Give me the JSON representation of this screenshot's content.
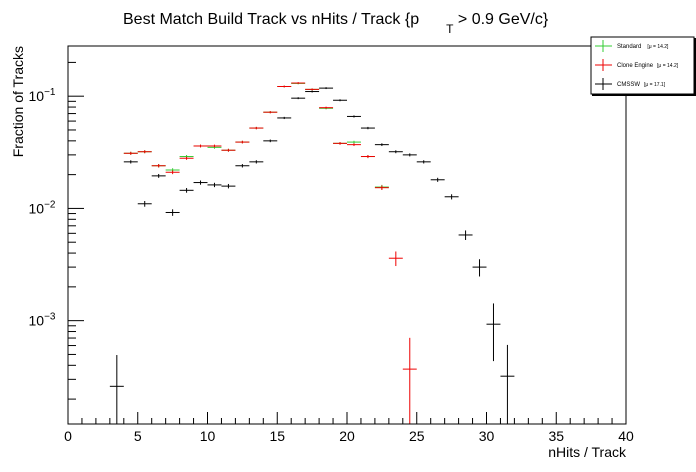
{
  "chart_data": {
    "type": "scatter",
    "title": "Best Match Build Track vs nHits / Track {p",
    "title_sub": "T",
    "title_tail": " > 0.9 GeV/c}",
    "xlabel": "nHits / Track",
    "ylabel": "Fraction of Tracks",
    "xlim": [
      0,
      40
    ],
    "ylim": [
      0.00012,
      0.28
    ],
    "yscale": "log",
    "x_ticks": [
      0,
      5,
      10,
      15,
      20,
      25,
      30,
      35,
      40
    ],
    "y_ticks": [
      {
        "value": 0.001,
        "base": "10",
        "exp": "−3"
      },
      {
        "value": 0.01,
        "base": "10",
        "exp": "−2"
      },
      {
        "value": 0.1,
        "base": "10",
        "exp": "−1"
      }
    ],
    "legend_position": "top-right",
    "series": [
      {
        "name": "Standard",
        "mean_label": "[μ = 14.2]",
        "color": "#33cc33",
        "points": [
          {
            "x": 4.5,
            "y": 0.031
          },
          {
            "x": 5.5,
            "y": 0.032
          },
          {
            "x": 6.5,
            "y": 0.024
          },
          {
            "x": 7.5,
            "y": 0.022
          },
          {
            "x": 8.5,
            "y": 0.029
          },
          {
            "x": 9.5,
            "y": 0.036
          },
          {
            "x": 10.5,
            "y": 0.035
          },
          {
            "x": 11.5,
            "y": 0.033
          },
          {
            "x": 12.5,
            "y": 0.039
          },
          {
            "x": 13.5,
            "y": 0.052
          },
          {
            "x": 14.5,
            "y": 0.072
          },
          {
            "x": 15.5,
            "y": 0.122
          },
          {
            "x": 16.5,
            "y": 0.13
          },
          {
            "x": 17.5,
            "y": 0.115
          },
          {
            "x": 18.5,
            "y": 0.078
          },
          {
            "x": 19.5,
            "y": 0.038
          },
          {
            "x": 20.5,
            "y": 0.039
          },
          {
            "x": 21.5,
            "y": 0.029
          },
          {
            "x": 22.5,
            "y": 0.0155
          }
        ]
      },
      {
        "name": "Clone Engine",
        "mean_label": "[μ = 14.2]",
        "color": "#ee0000",
        "points": [
          {
            "x": 4.5,
            "y": 0.031
          },
          {
            "x": 5.5,
            "y": 0.032
          },
          {
            "x": 6.5,
            "y": 0.024
          },
          {
            "x": 7.5,
            "y": 0.021
          },
          {
            "x": 8.5,
            "y": 0.028
          },
          {
            "x": 9.5,
            "y": 0.036
          },
          {
            "x": 10.5,
            "y": 0.036
          },
          {
            "x": 11.5,
            "y": 0.033
          },
          {
            "x": 12.5,
            "y": 0.039
          },
          {
            "x": 13.5,
            "y": 0.052
          },
          {
            "x": 14.5,
            "y": 0.072
          },
          {
            "x": 15.5,
            "y": 0.122
          },
          {
            "x": 16.5,
            "y": 0.131
          },
          {
            "x": 17.5,
            "y": 0.115
          },
          {
            "x": 18.5,
            "y": 0.079
          },
          {
            "x": 19.5,
            "y": 0.038
          },
          {
            "x": 20.5,
            "y": 0.037
          },
          {
            "x": 21.5,
            "y": 0.029
          },
          {
            "x": 22.5,
            "y": 0.0153
          },
          {
            "x": 23.5,
            "y": 0.0036
          },
          {
            "x": 24.5,
            "y": 0.00037
          }
        ]
      },
      {
        "name": "CMSSW",
        "mean_label": "[μ = 17.1]",
        "color": "#000000",
        "points": [
          {
            "x": 3.5,
            "y": 0.00026
          },
          {
            "x": 4.5,
            "y": 0.026
          },
          {
            "x": 5.5,
            "y": 0.011
          },
          {
            "x": 6.5,
            "y": 0.0195
          },
          {
            "x": 7.5,
            "y": 0.0092
          },
          {
            "x": 8.5,
            "y": 0.0145
          },
          {
            "x": 9.5,
            "y": 0.017
          },
          {
            "x": 10.5,
            "y": 0.0162
          },
          {
            "x": 11.5,
            "y": 0.0158
          },
          {
            "x": 12.5,
            "y": 0.024
          },
          {
            "x": 13.5,
            "y": 0.026
          },
          {
            "x": 14.5,
            "y": 0.04
          },
          {
            "x": 15.5,
            "y": 0.064
          },
          {
            "x": 16.5,
            "y": 0.096
          },
          {
            "x": 17.5,
            "y": 0.11
          },
          {
            "x": 18.5,
            "y": 0.118
          },
          {
            "x": 19.5,
            "y": 0.092
          },
          {
            "x": 20.5,
            "y": 0.066
          },
          {
            "x": 21.5,
            "y": 0.052
          },
          {
            "x": 22.5,
            "y": 0.037
          },
          {
            "x": 23.5,
            "y": 0.032
          },
          {
            "x": 24.5,
            "y": 0.03
          },
          {
            "x": 25.5,
            "y": 0.026
          },
          {
            "x": 26.5,
            "y": 0.018
          },
          {
            "x": 27.5,
            "y": 0.0127
          },
          {
            "x": 28.5,
            "y": 0.0058
          },
          {
            "x": 29.5,
            "y": 0.003
          },
          {
            "x": 30.5,
            "y": 0.00093
          },
          {
            "x": 31.5,
            "y": 0.00032
          }
        ]
      }
    ]
  }
}
